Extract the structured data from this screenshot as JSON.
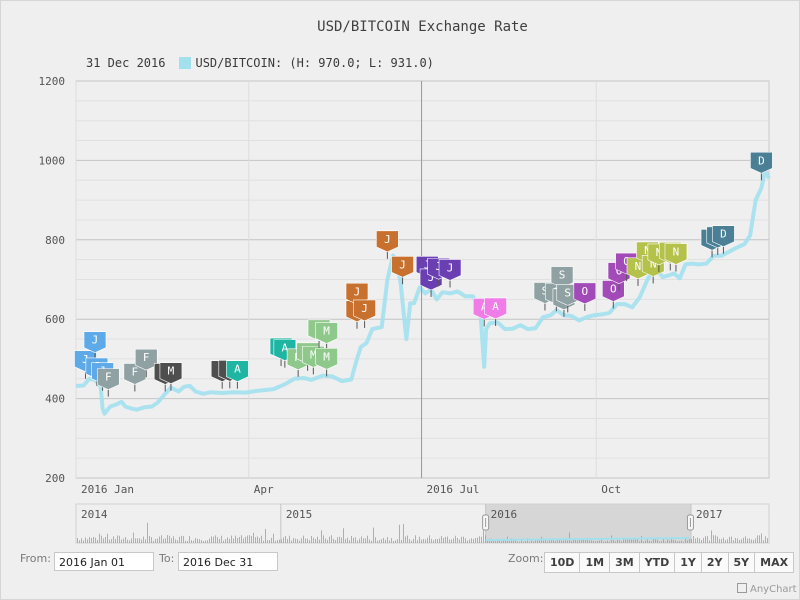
{
  "title": "USD/BITCOIN Exchange Rate",
  "legend": {
    "date": "31 Dec 2016",
    "series_text": "USD/BITCOIN: (H: 970.0; L: 931.0)",
    "color": "#a3e0ee"
  },
  "chart_data": {
    "type": "area",
    "title": "USD/BITCOIN Exchange Rate",
    "y_ticks": [
      "1200",
      "1000",
      "800",
      "600",
      "400",
      "200"
    ],
    "y_range": [
      200,
      1200
    ],
    "x_range": [
      "2016-01-01",
      "2016-12-31"
    ],
    "x_labels": [
      {
        "label": "2016 Jan",
        "date": "2016-01-01"
      },
      {
        "label": "Apr",
        "date": "2016-04-01"
      },
      {
        "label": "2016 Jul",
        "date": "2016-07-01"
      },
      {
        "label": "Oct",
        "date": "2016-10-01"
      }
    ],
    "grid": true,
    "crosshair_date": "2016-07-01",
    "series": [
      {
        "name": "USD/BITCOIN",
        "color": "#a3e0ee",
        "points": [
          [
            "2016-01-01",
            432
          ],
          [
            "2016-01-05",
            433
          ],
          [
            "2016-01-08",
            450
          ],
          [
            "2016-01-11",
            447
          ],
          [
            "2016-01-14",
            430
          ],
          [
            "2016-01-15",
            375
          ],
          [
            "2016-01-16",
            362
          ],
          [
            "2016-01-19",
            380
          ],
          [
            "2016-01-22",
            385
          ],
          [
            "2016-01-25",
            392
          ],
          [
            "2016-01-27",
            380
          ],
          [
            "2016-01-30",
            375
          ],
          [
            "2016-02-02",
            372
          ],
          [
            "2016-02-06",
            378
          ],
          [
            "2016-02-10",
            380
          ],
          [
            "2016-02-13",
            390
          ],
          [
            "2016-02-17",
            412
          ],
          [
            "2016-02-20",
            428
          ],
          [
            "2016-02-24",
            418
          ],
          [
            "2016-02-27",
            430
          ],
          [
            "2016-03-01",
            432
          ],
          [
            "2016-03-04",
            418
          ],
          [
            "2016-03-08",
            412
          ],
          [
            "2016-03-12",
            416
          ],
          [
            "2016-03-18",
            414
          ],
          [
            "2016-03-24",
            416
          ],
          [
            "2016-03-30",
            415
          ],
          [
            "2016-04-06",
            420
          ],
          [
            "2016-04-14",
            424
          ],
          [
            "2016-04-20",
            436
          ],
          [
            "2016-04-25",
            450
          ],
          [
            "2016-04-30",
            452
          ],
          [
            "2016-05-04",
            447
          ],
          [
            "2016-05-10",
            458
          ],
          [
            "2016-05-15",
            456
          ],
          [
            "2016-05-20",
            444
          ],
          [
            "2016-05-25",
            448
          ],
          [
            "2016-05-28",
            500
          ],
          [
            "2016-05-30",
            530
          ],
          [
            "2016-06-02",
            540
          ],
          [
            "2016-06-05",
            575
          ],
          [
            "2016-06-10",
            580
          ],
          [
            "2016-06-13",
            700
          ],
          [
            "2016-06-16",
            760
          ],
          [
            "2016-06-18",
            745
          ],
          [
            "2016-06-20",
            690
          ],
          [
            "2016-06-22",
            595
          ],
          [
            "2016-06-23",
            550
          ],
          [
            "2016-06-25",
            640
          ],
          [
            "2016-06-27",
            640
          ],
          [
            "2016-06-30",
            680
          ],
          [
            "2016-07-03",
            665
          ],
          [
            "2016-07-06",
            675
          ],
          [
            "2016-07-09",
            650
          ],
          [
            "2016-07-12",
            668
          ],
          [
            "2016-07-16",
            665
          ],
          [
            "2016-07-20",
            670
          ],
          [
            "2016-07-24",
            658
          ],
          [
            "2016-07-28",
            658
          ],
          [
            "2016-08-01",
            620
          ],
          [
            "2016-08-02",
            547
          ],
          [
            "2016-08-03",
            480
          ],
          [
            "2016-08-04",
            575
          ],
          [
            "2016-08-06",
            590
          ],
          [
            "2016-08-10",
            592
          ],
          [
            "2016-08-14",
            575
          ],
          [
            "2016-08-18",
            576
          ],
          [
            "2016-08-22",
            585
          ],
          [
            "2016-08-26",
            575
          ],
          [
            "2016-08-30",
            577
          ],
          [
            "2016-09-03",
            605
          ],
          [
            "2016-09-07",
            610
          ],
          [
            "2016-09-10",
            623
          ],
          [
            "2016-09-14",
            610
          ],
          [
            "2016-09-18",
            608
          ],
          [
            "2016-09-22",
            597
          ],
          [
            "2016-09-26",
            605
          ],
          [
            "2016-09-30",
            610
          ],
          [
            "2016-10-04",
            612
          ],
          [
            "2016-10-08",
            616
          ],
          [
            "2016-10-12",
            638
          ],
          [
            "2016-10-16",
            638
          ],
          [
            "2016-10-20",
            630
          ],
          [
            "2016-10-24",
            656
          ],
          [
            "2016-10-28",
            700
          ],
          [
            "2016-11-01",
            730
          ],
          [
            "2016-11-05",
            706
          ],
          [
            "2016-11-08",
            710
          ],
          [
            "2016-11-11",
            715
          ],
          [
            "2016-11-14",
            703
          ],
          [
            "2016-11-17",
            738
          ],
          [
            "2016-11-20",
            740
          ],
          [
            "2016-11-24",
            738
          ],
          [
            "2016-11-28",
            740
          ],
          [
            "2016-12-02",
            760
          ],
          [
            "2016-12-06",
            760
          ],
          [
            "2016-12-10",
            770
          ],
          [
            "2016-12-14",
            780
          ],
          [
            "2016-12-18",
            789
          ],
          [
            "2016-12-21",
            810
          ],
          [
            "2016-12-24",
            900
          ],
          [
            "2016-12-27",
            931
          ],
          [
            "2016-12-29",
            975
          ],
          [
            "2016-12-31",
            955
          ]
        ]
      }
    ],
    "event_markers": [
      {
        "label": "J",
        "date": "2016-01-06",
        "value": 450,
        "color": "#5ea9e8"
      },
      {
        "label": "J",
        "date": "2016-01-11",
        "value": 498,
        "color": "#5ea9e8"
      },
      {
        "label": "J",
        "date": "2016-01-12",
        "value": 432,
        "color": "#5ea9e8"
      },
      {
        "label": "J",
        "date": "2016-01-15",
        "value": 420,
        "color": "#5ea9e8"
      },
      {
        "label": "F",
        "date": "2016-01-18",
        "value": 405,
        "color": "#8fa1a3"
      },
      {
        "label": "F",
        "date": "2016-02-01",
        "value": 418,
        "color": "#8fa1a3"
      },
      {
        "label": "F",
        "date": "2016-02-07",
        "value": 454,
        "color": "#8fa1a3"
      },
      {
        "label": "M",
        "date": "2016-02-17",
        "value": 418,
        "color": "#4e4e4e"
      },
      {
        "label": "M",
        "date": "2016-02-20",
        "value": 420,
        "color": "#4e4e4e"
      },
      {
        "label": "A",
        "date": "2016-03-18",
        "value": 425,
        "color": "#4e4e4e"
      },
      {
        "label": "A",
        "date": "2016-03-22",
        "value": 426,
        "color": "#4e4e4e"
      },
      {
        "label": "A",
        "date": "2016-03-26",
        "value": 425,
        "color": "#1fb5a3"
      },
      {
        "label": "A",
        "date": "2016-04-18",
        "value": 482,
        "color": "#1fb5a3"
      },
      {
        "label": "A",
        "date": "2016-04-20",
        "value": 478,
        "color": "#1fb5a3"
      },
      {
        "label": "M",
        "date": "2016-04-27",
        "value": 455,
        "color": "#8ec98b"
      },
      {
        "label": "M",
        "date": "2016-05-02",
        "value": 470,
        "color": "#8ec98b"
      },
      {
        "label": "M",
        "date": "2016-05-05",
        "value": 461,
        "color": "#8ec98b"
      },
      {
        "label": "M",
        "date": "2016-05-08",
        "value": 528,
        "color": "#8ec98b"
      },
      {
        "label": "M",
        "date": "2016-05-12",
        "value": 521,
        "color": "#8ec98b"
      },
      {
        "label": "M",
        "date": "2016-05-12",
        "value": 456,
        "color": "#8ec98b"
      },
      {
        "label": "J",
        "date": "2016-05-28",
        "value": 576,
        "color": "#c8702e"
      },
      {
        "label": "J",
        "date": "2016-05-28",
        "value": 620,
        "color": "#c8702e"
      },
      {
        "label": "J",
        "date": "2016-06-01",
        "value": 578,
        "color": "#c8702e"
      },
      {
        "label": "J",
        "date": "2016-06-13",
        "value": 752,
        "color": "#c8702e"
      },
      {
        "label": "J",
        "date": "2016-06-21",
        "value": 688,
        "color": "#c8702e"
      },
      {
        "label": "J",
        "date": "2016-07-04",
        "value": 688,
        "color": "#6a3fb2"
      },
      {
        "label": "J",
        "date": "2016-07-06",
        "value": 656,
        "color": "#6a3fb2"
      },
      {
        "label": "J",
        "date": "2016-07-10",
        "value": 683,
        "color": "#6a3fb2"
      },
      {
        "label": "J",
        "date": "2016-07-16",
        "value": 680,
        "color": "#6a3fb2"
      },
      {
        "label": "A",
        "date": "2016-08-03",
        "value": 582,
        "color": "#f07ce8"
      },
      {
        "label": "A",
        "date": "2016-08-09",
        "value": 583,
        "color": "#f07ce8"
      },
      {
        "label": "S",
        "date": "2016-09-04",
        "value": 622,
        "color": "#8fa1a3"
      },
      {
        "label": "S",
        "date": "2016-09-10",
        "value": 620,
        "color": "#8fa1a3"
      },
      {
        "label": "S",
        "date": "2016-09-13",
        "value": 662,
        "color": "#8fa1a3"
      },
      {
        "label": "S",
        "date": "2016-09-14",
        "value": 606,
        "color": "#8fa1a3"
      },
      {
        "label": "S",
        "date": "2016-09-16",
        "value": 617,
        "color": "#8fa1a3"
      },
      {
        "label": "O",
        "date": "2016-09-25",
        "value": 621,
        "color": "#a24ab8"
      },
      {
        "label": "O",
        "date": "2016-10-10",
        "value": 627,
        "color": "#a24ab8"
      },
      {
        "label": "O",
        "date": "2016-10-13",
        "value": 672,
        "color": "#a24ab8"
      },
      {
        "label": "O",
        "date": "2016-10-17",
        "value": 696,
        "color": "#a24ab8"
      },
      {
        "label": "N",
        "date": "2016-10-23",
        "value": 684,
        "color": "#b4c14a"
      },
      {
        "label": "N",
        "date": "2016-10-28",
        "value": 724,
        "color": "#b4c14a"
      },
      {
        "label": "N",
        "date": "2016-10-31",
        "value": 690,
        "color": "#b4c14a"
      },
      {
        "label": "N",
        "date": "2016-11-03",
        "value": 719,
        "color": "#b4c14a"
      },
      {
        "label": "N",
        "date": "2016-11-09",
        "value": 723,
        "color": "#b4c14a"
      },
      {
        "label": "N",
        "date": "2016-11-12",
        "value": 720,
        "color": "#b4c14a"
      },
      {
        "label": "D",
        "date": "2016-12-01",
        "value": 756,
        "color": "#4a7f96"
      },
      {
        "label": "D",
        "date": "2016-12-04",
        "value": 762,
        "color": "#4a7f96"
      },
      {
        "label": "D",
        "date": "2016-12-07",
        "value": 765,
        "color": "#4a7f96"
      },
      {
        "label": "D",
        "date": "2016-12-27",
        "value": 950,
        "color": "#4a7f96"
      }
    ]
  },
  "navigator": {
    "labels": [
      "2014",
      "2015",
      "2016",
      "2017"
    ],
    "selected_range": [
      "2016-01-01",
      "2016-12-31"
    ],
    "series_color": "#a3e0ee",
    "volume_color": "#9a9a9a"
  },
  "range_selector": {
    "from_label": "From:",
    "from_value": "2016 Jan 01",
    "to_label": "To:",
    "to_value": "2016 Dec 31"
  },
  "zoom": {
    "label": "Zoom:",
    "buttons": [
      "10D",
      "1M",
      "3M",
      "YTD",
      "1Y",
      "2Y",
      "5Y",
      "MAX"
    ]
  },
  "credits": "AnyChart"
}
